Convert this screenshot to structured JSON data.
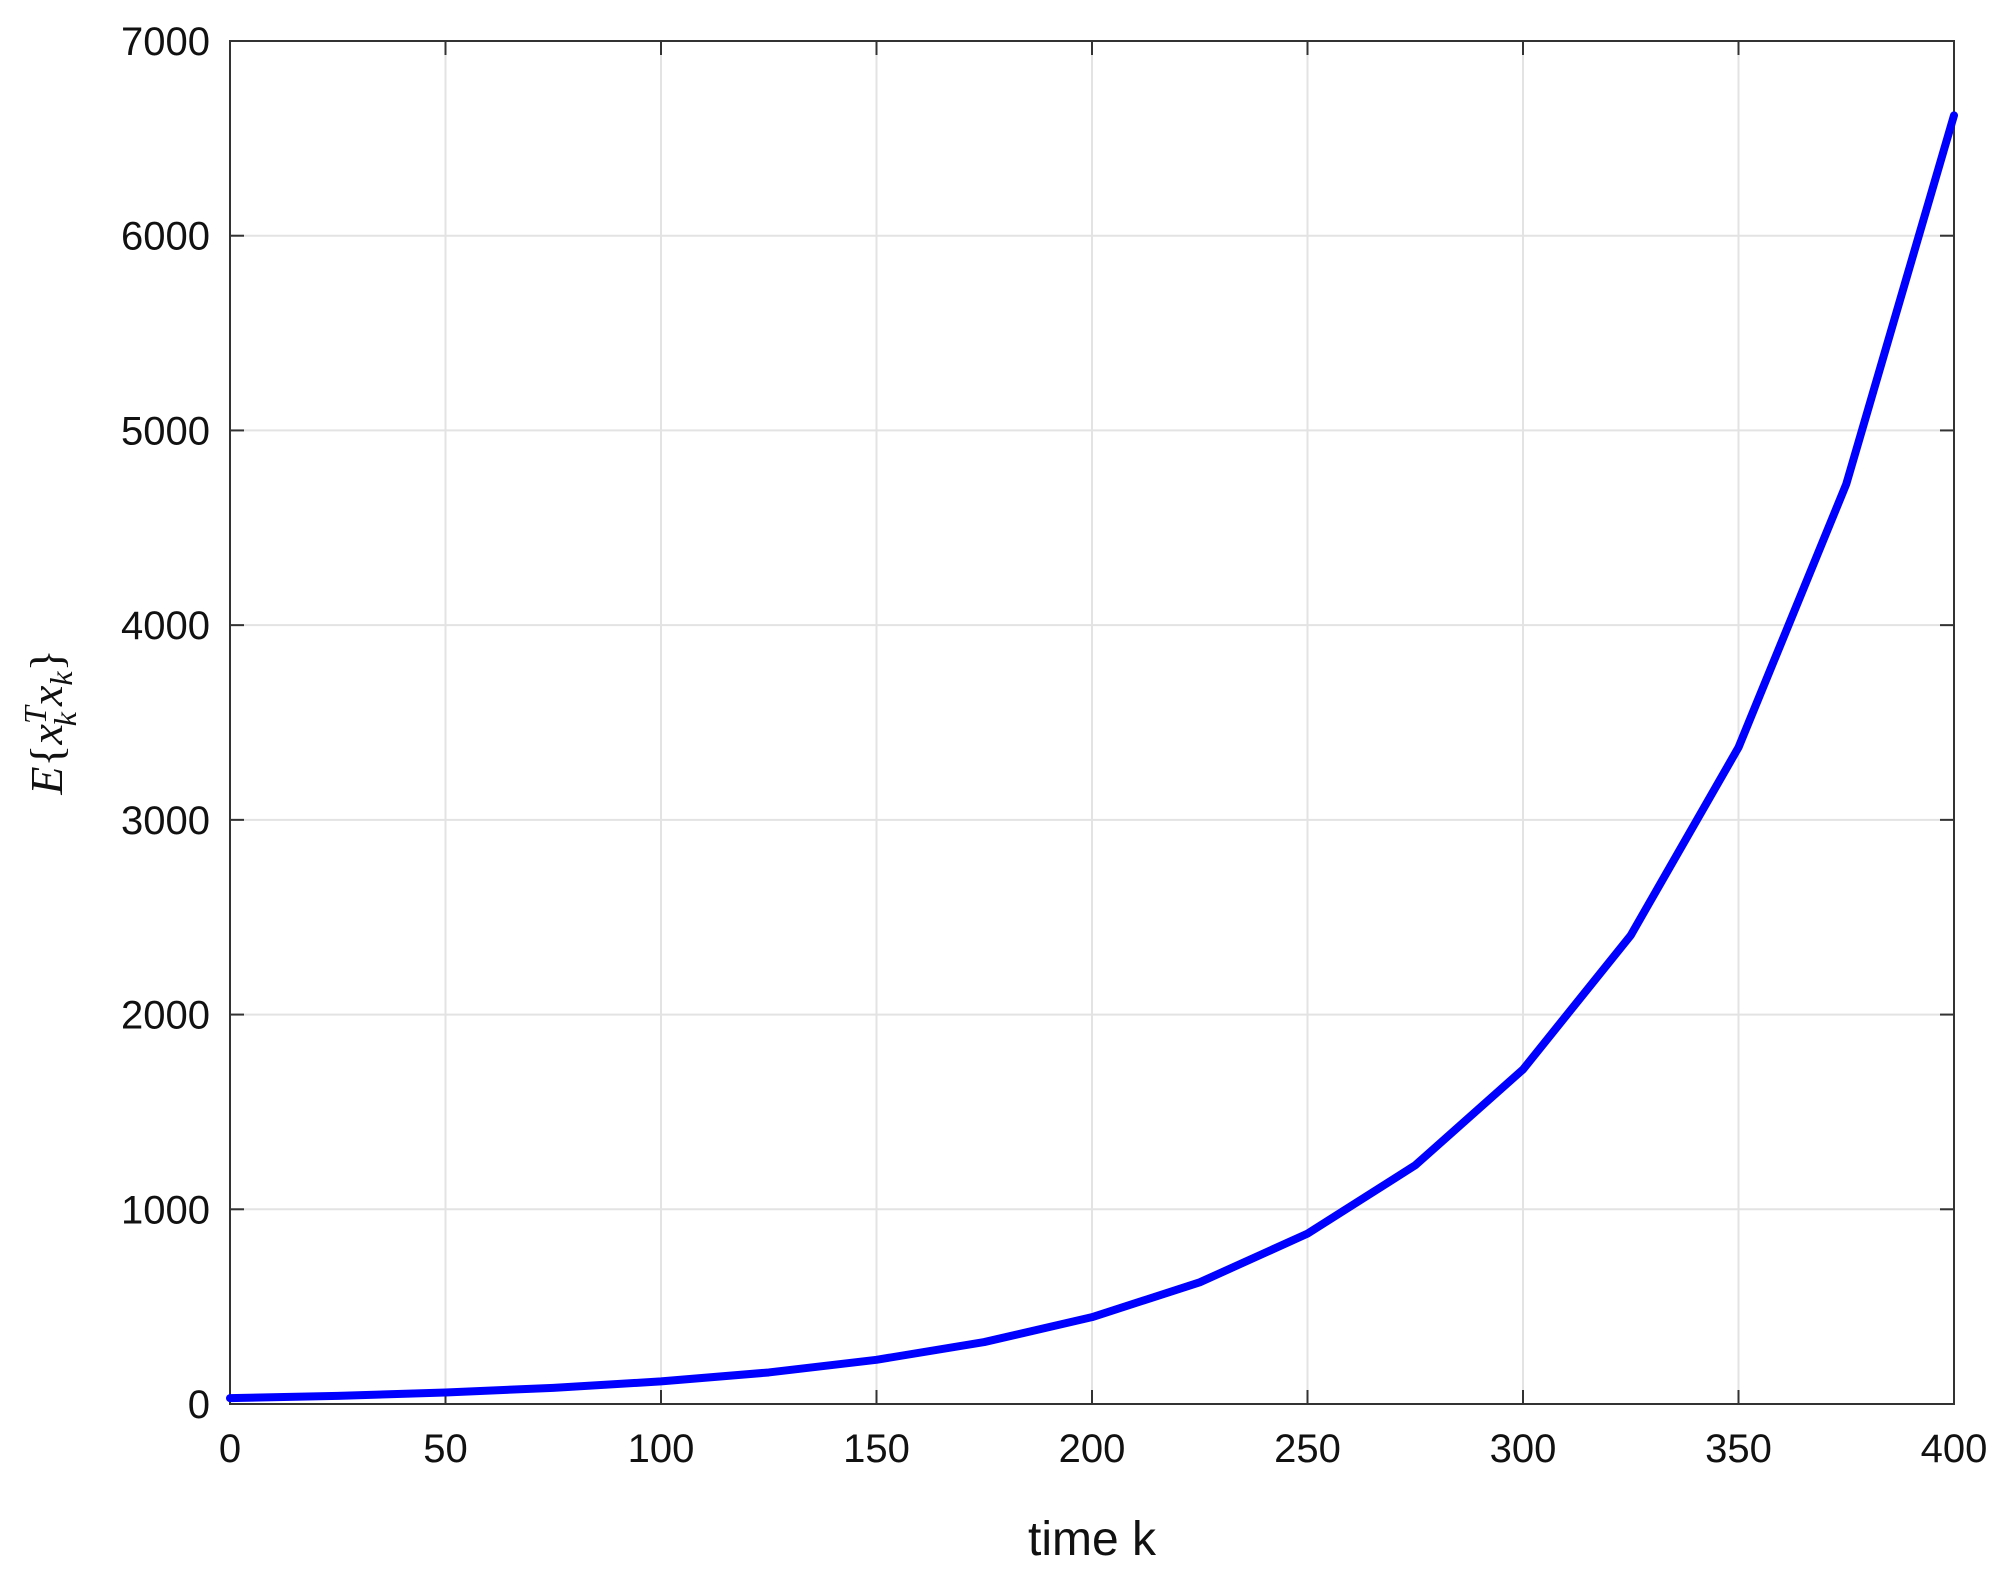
{
  "chart_data": {
    "type": "line",
    "x_label": "time k",
    "y_label": [
      "E",
      "{",
      "x",
      "T",
      "k",
      "x",
      "k",
      "}"
    ],
    "x": [
      0,
      25,
      50,
      75,
      100,
      125,
      150,
      175,
      200,
      225,
      250,
      275,
      300,
      325,
      350,
      375,
      400
    ],
    "series": [
      {
        "color": "#0000ff",
        "values": [
          30,
          42,
          59,
          83,
          116,
          162,
          227,
          318,
          446,
          625,
          875,
          1226,
          1718,
          2407,
          3372,
          4724,
          6618
        ]
      }
    ],
    "xlim": [
      0,
      400
    ],
    "xticks": [
      0,
      50,
      100,
      150,
      200,
      250,
      300,
      350,
      400
    ],
    "ylim": [
      0,
      7000
    ],
    "yticks": [
      0,
      1000,
      2000,
      3000,
      4000,
      5000,
      6000,
      7000
    ],
    "grid": true
  }
}
